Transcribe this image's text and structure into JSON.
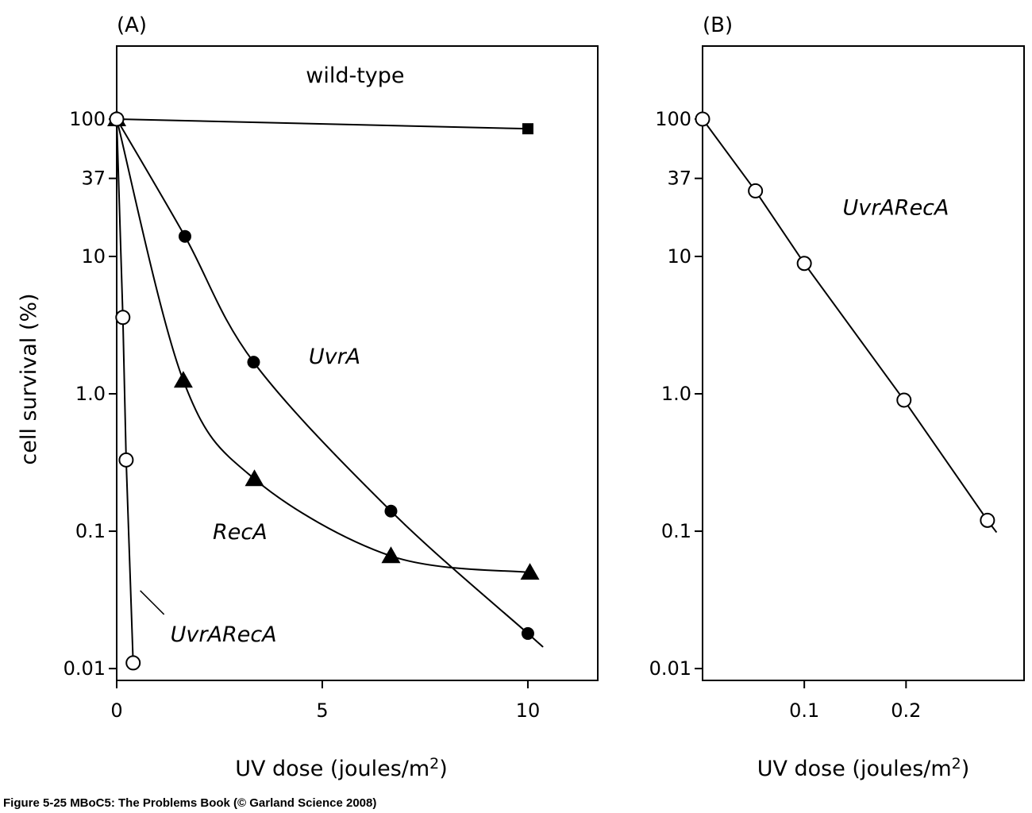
{
  "caption": "Figure 5-25  MBoC5: The Problems Book (© Garland Science 2008)",
  "chart_data": [
    {
      "panel": "(A)",
      "type": "line",
      "xlabel": "UV dose (joules/m",
      "xlabel_sup": "2",
      "xlabel_close": ")",
      "ylabel": "cell survival (%)",
      "yscale": "log",
      "xlim": [
        0,
        11.7
      ],
      "ylim": [
        0.0082,
        340
      ],
      "xticks": [
        {
          "v": 0,
          "label": "0"
        },
        {
          "v": 5,
          "label": "5"
        },
        {
          "v": 10,
          "label": "10"
        }
      ],
      "yticks": [
        {
          "v": 100,
          "label": "100"
        },
        {
          "v": 37,
          "label": "37"
        },
        {
          "v": 10,
          "label": "10"
        },
        {
          "v": 1,
          "label": "1.0"
        },
        {
          "v": 0.1,
          "label": "0.1"
        },
        {
          "v": 0.01,
          "label": "0.01"
        }
      ],
      "grid": false,
      "series": [
        {
          "name": "wild-type",
          "marker": "square",
          "smooth": false,
          "points": [
            [
              0,
              100
            ],
            [
              10,
              85
            ]
          ],
          "label_at": [
            5.8,
            210
          ],
          "italic": false
        },
        {
          "name": "UvrA",
          "marker": "filled-circle",
          "smooth": true,
          "points": [
            [
              0,
              100
            ],
            [
              1.66,
              14
            ],
            [
              3.33,
              1.7
            ],
            [
              6.67,
              0.14
            ],
            [
              10,
              0.018
            ]
          ],
          "curve_end": [
            10.3,
            0.015
          ],
          "label_at": [
            5.3,
            1.9
          ],
          "italic": true
        },
        {
          "name": "RecA",
          "marker": "filled-triangle",
          "smooth": true,
          "points": [
            [
              0,
              100
            ],
            [
              1.62,
              1.25
            ],
            [
              3.35,
              0.24
            ],
            [
              6.67,
              0.066
            ],
            [
              10.05,
              0.05
            ]
          ],
          "label_at": [
            3.0,
            0.1
          ],
          "italic": true
        },
        {
          "name": "UvrARecA",
          "marker": "open-circle",
          "smooth": false,
          "points": [
            [
              0,
              100
            ],
            [
              0.15,
              3.6
            ],
            [
              0.23,
              0.33
            ],
            [
              0.4,
              0.011
            ]
          ],
          "label_at": [
            2.6,
            0.018
          ],
          "italic": true,
          "leader": true
        }
      ]
    },
    {
      "panel": "(B)",
      "type": "line",
      "xlabel": "UV dose (joules/m",
      "xlabel_sup": "2",
      "xlabel_close": ")",
      "yscale": "log",
      "xlim": [
        0,
        0.316
      ],
      "ylim": [
        0.0082,
        340
      ],
      "xticks": [
        {
          "v": 0.1,
          "label": "0.1"
        },
        {
          "v": 0.2,
          "label": "0.2"
        }
      ],
      "yticks": [
        {
          "v": 100,
          "label": "100"
        },
        {
          "v": 37,
          "label": "37"
        },
        {
          "v": 10,
          "label": "10"
        },
        {
          "v": 1,
          "label": "1.0"
        },
        {
          "v": 0.1,
          "label": "0.1"
        },
        {
          "v": 0.01,
          "label": "0.01"
        }
      ],
      "grid": false,
      "series": [
        {
          "name": "UvrARecA",
          "marker": "open-circle",
          "smooth": false,
          "points": [
            [
              0,
              100
            ],
            [
              0.052,
              30
            ],
            [
              0.1,
              8.9
            ],
            [
              0.198,
              0.9
            ],
            [
              0.28,
              0.12
            ]
          ],
          "curve_end": [
            0.289,
            0.098
          ],
          "label_at": [
            0.19,
            23
          ],
          "italic": true
        }
      ]
    }
  ]
}
